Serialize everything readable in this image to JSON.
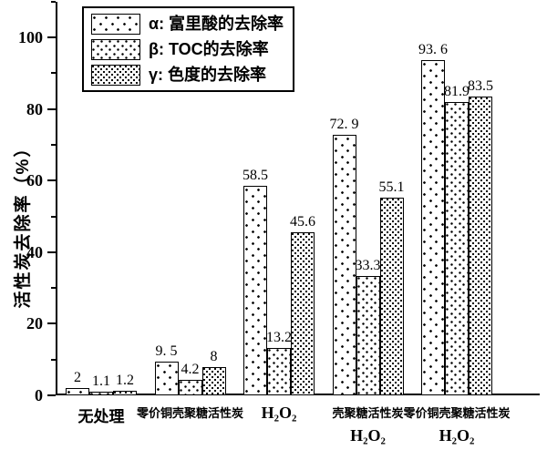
{
  "chart_data": {
    "type": "bar",
    "title": "",
    "xlabel": "",
    "ylabel": "活性炭去除率（%）",
    "ylim": [
      0,
      110
    ],
    "yticks_major": [
      0,
      20,
      40,
      60,
      80,
      100
    ],
    "yticks_minor": [
      10,
      30,
      50,
      70,
      90,
      110
    ],
    "grid": false,
    "legend_position": "top-left",
    "bar_fill_color": "#ffffff",
    "bar_edge_color": "#000000",
    "categories": [
      {
        "lines": [
          {
            "text": "无处理",
            "kind": "cat-large"
          }
        ]
      },
      {
        "lines": [
          {
            "text": "零价铜壳聚糖活性炭",
            "kind": "cat-small"
          }
        ]
      },
      {
        "lines": [
          {
            "text": "H₂O₂",
            "kind": "cat-formula"
          }
        ]
      },
      {
        "lines": [
          {
            "text": "壳聚糖活性炭",
            "kind": "cat-small"
          },
          {
            "text": "H₂O₂",
            "kind": "cat-formula"
          }
        ]
      },
      {
        "lines": [
          {
            "text": "零价铜壳聚糖活性炭",
            "kind": "cat-small"
          },
          {
            "text": "H₂O₂",
            "kind": "cat-formula"
          }
        ]
      }
    ],
    "series": [
      {
        "symbol": "α",
        "name": "富里酸的去除率",
        "legend_label": "α: 富里酸的去除率",
        "pattern": "dots-sparse",
        "values": [
          2,
          9.5,
          58.5,
          72.9,
          93.6
        ],
        "value_labels": [
          "2",
          "9. 5",
          "58.5",
          "72. 9",
          "93. 6"
        ]
      },
      {
        "symbol": "β",
        "name": "TOC的去除率",
        "legend_label": "β: TOC的去除率",
        "pattern": "dots-medium",
        "values": [
          1.1,
          4.2,
          13.2,
          33.3,
          81.9
        ],
        "value_labels": [
          "1.1",
          "4.2",
          "13.2",
          "33.3",
          "81.9"
        ]
      },
      {
        "symbol": "γ",
        "name": "色度的去除率",
        "legend_label": "γ: 色度的去除率",
        "pattern": "dots-dense",
        "values": [
          1.2,
          8,
          45.6,
          55.1,
          83.5
        ],
        "value_labels": [
          "1.2",
          "8",
          "45.6",
          "55.1",
          "83.5"
        ]
      }
    ]
  }
}
